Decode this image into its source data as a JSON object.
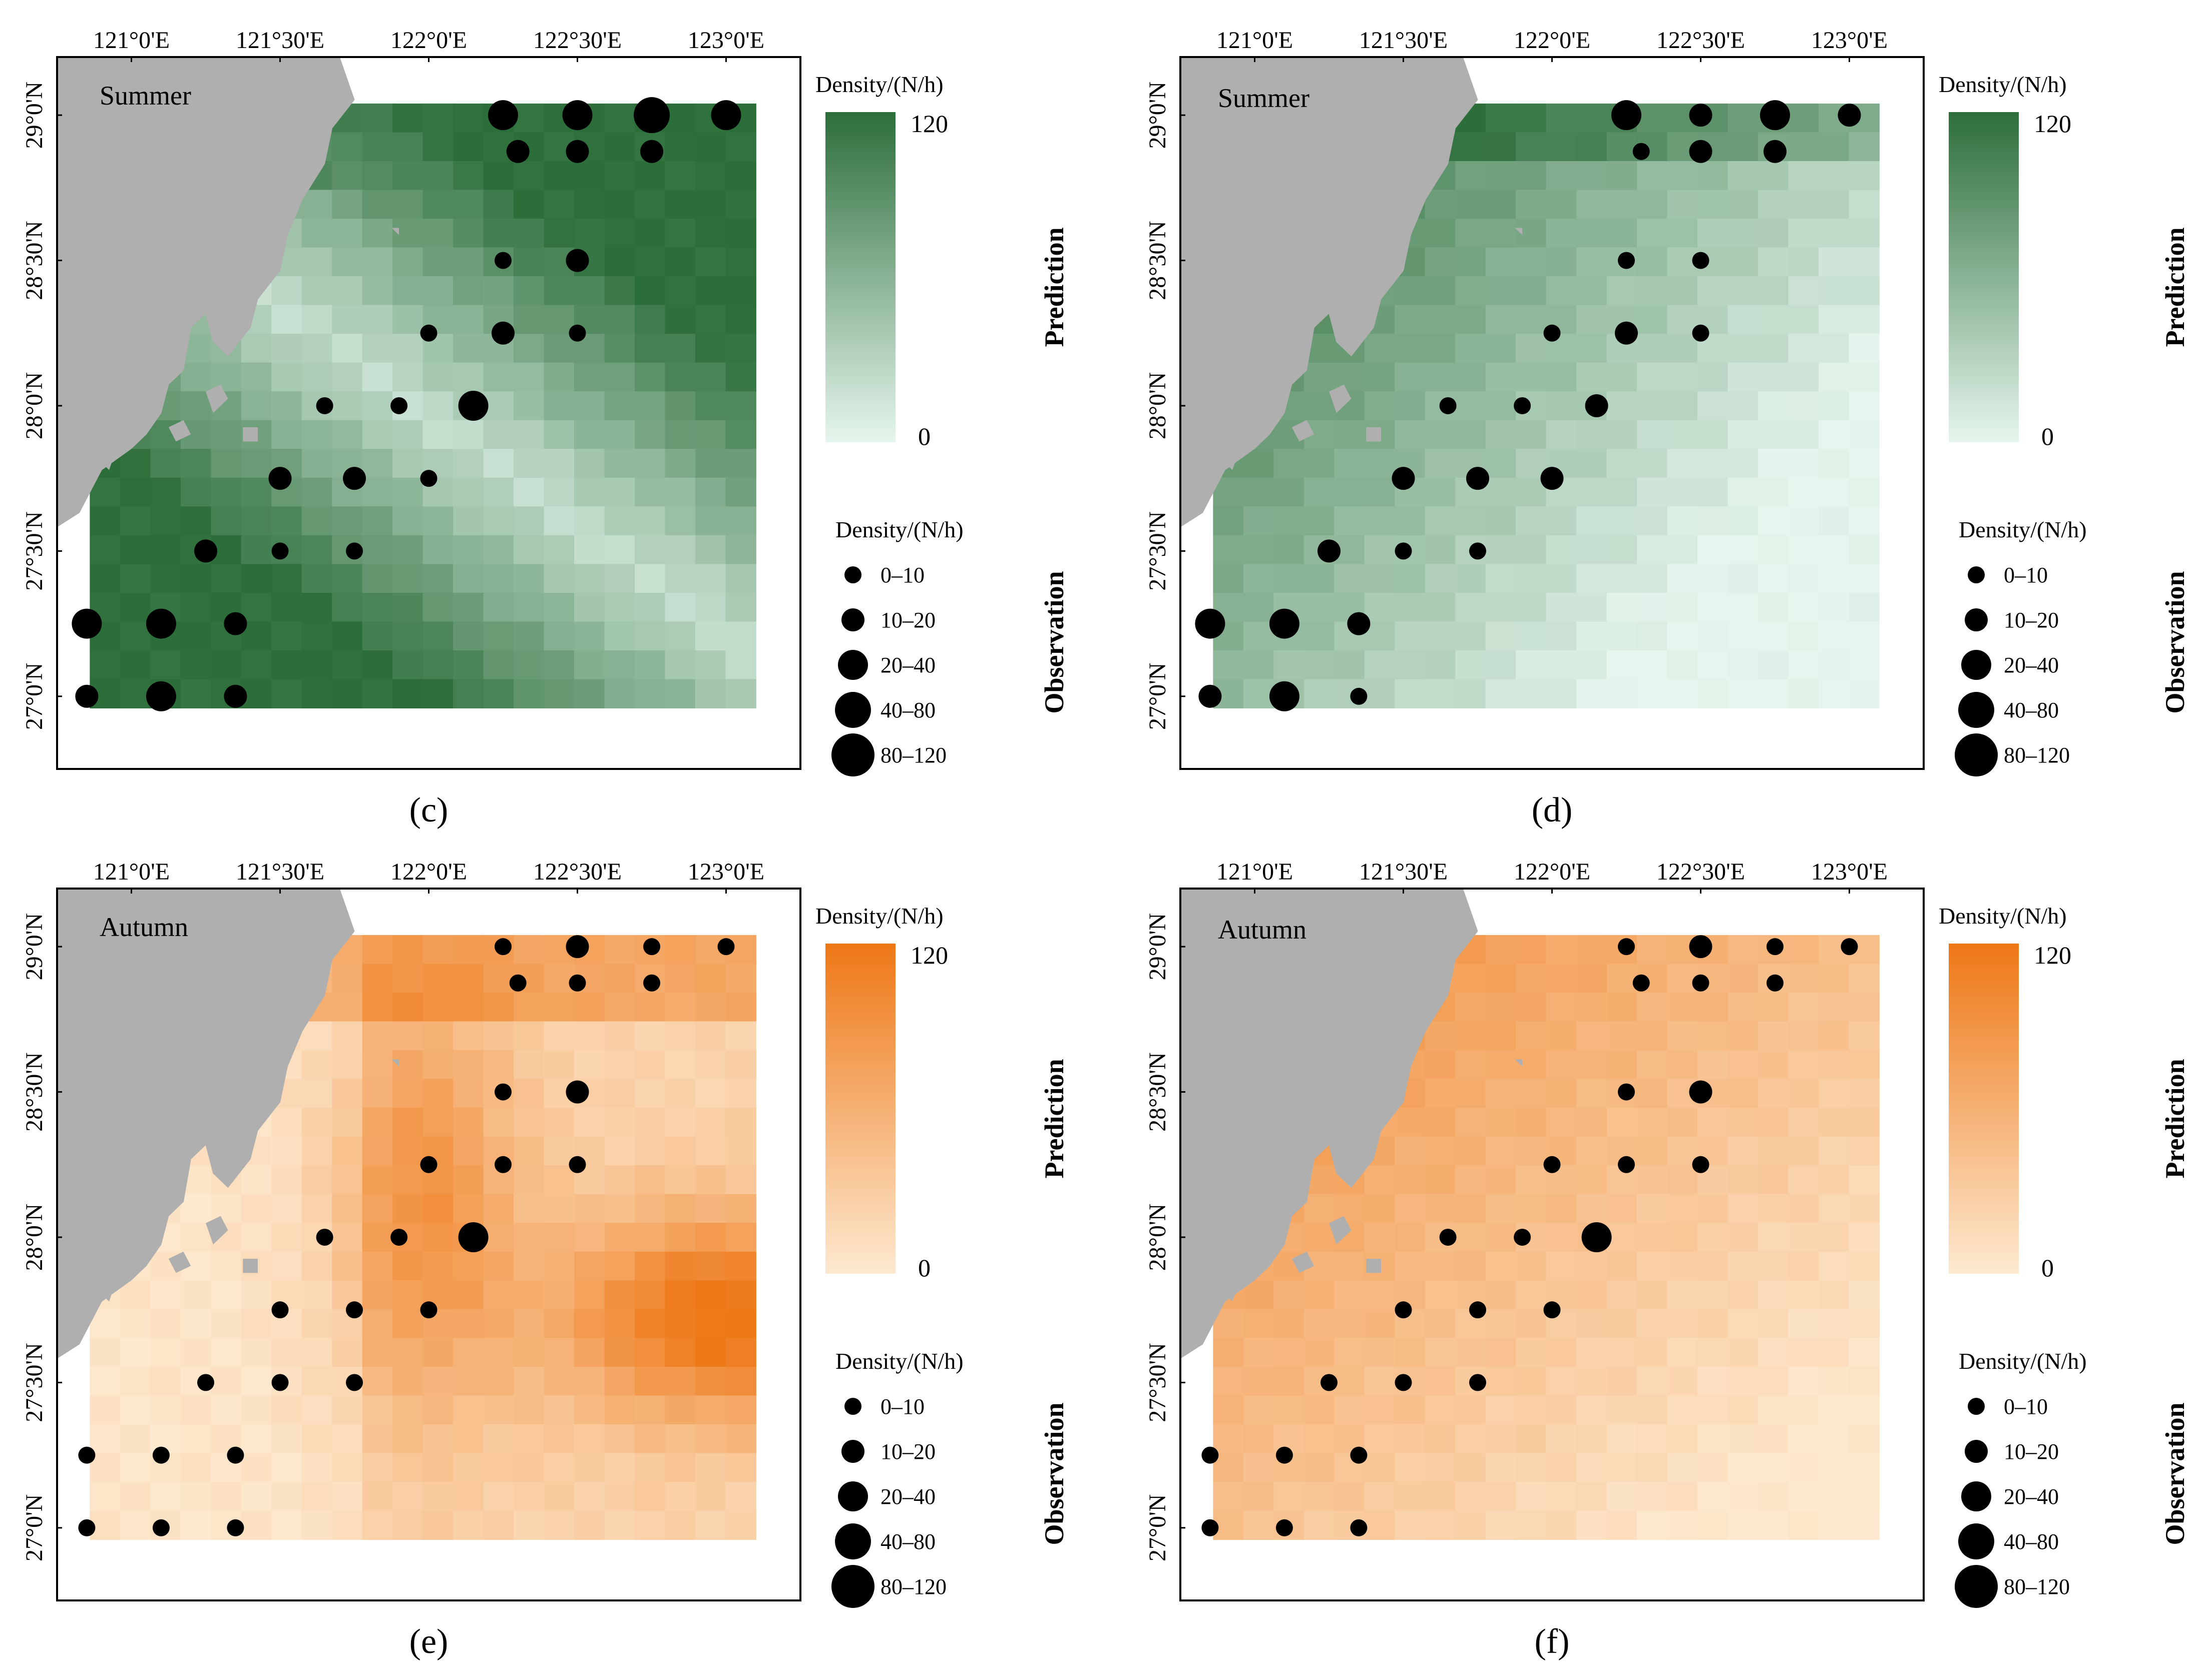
{
  "grid_axes": {
    "lon_labels": [
      "121°0'E",
      "121°30'E",
      "122°0'E",
      "122°30'E",
      "123°0'E"
    ],
    "lat_labels": [
      "29°0'N",
      "28°30'N",
      "28°0'N",
      "27°30'N",
      "27°0'N"
    ]
  },
  "legend_shared": {
    "density_title": "Density/(N/h)",
    "max_label": "120",
    "min_label": "0",
    "observation_classes": [
      "0–10",
      "10–20",
      "20–40",
      "40–80",
      "80–120"
    ],
    "prediction_label": "Prediction",
    "observation_label": "Observation"
  },
  "panels": [
    {
      "id": "c",
      "caption": "(c)",
      "season": "Summer",
      "ramp": [
        "#e6f6ee",
        "#2c6e3a"
      ],
      "pattern": "summer_c",
      "stations": [
        [
          29,
          123,
          3
        ],
        [
          29,
          122.75,
          4
        ],
        [
          29,
          122.5,
          3
        ],
        [
          29,
          122.25,
          3
        ],
        [
          28.875,
          122.75,
          2
        ],
        [
          28.875,
          122.5,
          2
        ],
        [
          28.875,
          122.3,
          2
        ],
        [
          28.5,
          122.5,
          2
        ],
        [
          28.5,
          122.25,
          1
        ],
        [
          28.25,
          122.5,
          1
        ],
        [
          28.25,
          122.25,
          2
        ],
        [
          28.25,
          122,
          1
        ],
        [
          28,
          122.15,
          3
        ],
        [
          28,
          121.9,
          1
        ],
        [
          28,
          121.65,
          1
        ],
        [
          27.75,
          122,
          1
        ],
        [
          27.75,
          121.75,
          2
        ],
        [
          27.75,
          121.5,
          2
        ],
        [
          27.5,
          121.75,
          1
        ],
        [
          27.5,
          121.5,
          1
        ],
        [
          27.5,
          121.25,
          2
        ],
        [
          27.25,
          121.35,
          2
        ],
        [
          27.25,
          121.1,
          3
        ],
        [
          27.25,
          120.85,
          3
        ],
        [
          27,
          121.35,
          2
        ],
        [
          27,
          121.1,
          3
        ],
        [
          27,
          120.85,
          2
        ]
      ]
    },
    {
      "id": "d",
      "caption": "(d)",
      "season": "Summer",
      "ramp": [
        "#e6f6ee",
        "#2c6e3a"
      ],
      "pattern": "summer_d",
      "stations": [
        [
          29,
          123,
          2
        ],
        [
          29,
          122.75,
          3
        ],
        [
          29,
          122.5,
          2
        ],
        [
          29,
          122.25,
          3
        ],
        [
          28.875,
          122.75,
          2
        ],
        [
          28.875,
          122.5,
          2
        ],
        [
          28.875,
          122.3,
          1
        ],
        [
          28.5,
          122.5,
          1
        ],
        [
          28.5,
          122.25,
          1
        ],
        [
          28.25,
          122.5,
          1
        ],
        [
          28.25,
          122.25,
          2
        ],
        [
          28.25,
          122,
          1
        ],
        [
          28,
          122.15,
          2
        ],
        [
          28,
          121.9,
          1
        ],
        [
          28,
          121.65,
          1
        ],
        [
          27.75,
          122,
          2
        ],
        [
          27.75,
          121.75,
          2
        ],
        [
          27.75,
          121.5,
          2
        ],
        [
          27.5,
          121.75,
          1
        ],
        [
          27.5,
          121.5,
          1
        ],
        [
          27.5,
          121.25,
          2
        ],
        [
          27.25,
          121.35,
          2
        ],
        [
          27.25,
          121.1,
          3
        ],
        [
          27.25,
          120.85,
          3
        ],
        [
          27,
          121.35,
          1
        ],
        [
          27,
          121.1,
          3
        ],
        [
          27,
          120.85,
          2
        ]
      ]
    },
    {
      "id": "e",
      "caption": "(e)",
      "season": "Autumn",
      "ramp": [
        "#fde9d0",
        "#ee7716"
      ],
      "pattern": "autumn_e",
      "stations": [
        [
          29,
          123,
          1
        ],
        [
          29,
          122.75,
          1
        ],
        [
          29,
          122.5,
          2
        ],
        [
          29,
          122.25,
          1
        ],
        [
          28.875,
          122.75,
          1
        ],
        [
          28.875,
          122.5,
          1
        ],
        [
          28.875,
          122.3,
          1
        ],
        [
          28.5,
          122.5,
          2
        ],
        [
          28.5,
          122.25,
          1
        ],
        [
          28.25,
          122.5,
          1
        ],
        [
          28.25,
          122.25,
          1
        ],
        [
          28.25,
          122,
          1
        ],
        [
          28,
          122.15,
          3
        ],
        [
          28,
          121.9,
          1
        ],
        [
          28,
          121.65,
          1
        ],
        [
          27.75,
          122,
          1
        ],
        [
          27.75,
          121.75,
          1
        ],
        [
          27.75,
          121.5,
          1
        ],
        [
          27.5,
          121.75,
          1
        ],
        [
          27.5,
          121.5,
          1
        ],
        [
          27.5,
          121.25,
          1
        ],
        [
          27.25,
          121.35,
          1
        ],
        [
          27.25,
          121.1,
          1
        ],
        [
          27.25,
          120.85,
          1
        ],
        [
          27,
          121.35,
          1
        ],
        [
          27,
          121.1,
          1
        ],
        [
          27,
          120.85,
          1
        ]
      ]
    },
    {
      "id": "f",
      "caption": "(f)",
      "season": "Autumn",
      "ramp": [
        "#fde9d0",
        "#ee7716"
      ],
      "pattern": "autumn_f",
      "stations": [
        [
          29,
          123,
          1
        ],
        [
          29,
          122.75,
          1
        ],
        [
          29,
          122.5,
          2
        ],
        [
          29,
          122.25,
          1
        ],
        [
          28.875,
          122.75,
          1
        ],
        [
          28.875,
          122.5,
          1
        ],
        [
          28.875,
          122.3,
          1
        ],
        [
          28.5,
          122.5,
          2
        ],
        [
          28.5,
          122.25,
          1
        ],
        [
          28.25,
          122.5,
          1
        ],
        [
          28.25,
          122.25,
          1
        ],
        [
          28.25,
          122,
          1
        ],
        [
          28,
          122.15,
          3
        ],
        [
          28,
          121.9,
          1
        ],
        [
          28,
          121.65,
          1
        ],
        [
          27.75,
          122,
          1
        ],
        [
          27.75,
          121.75,
          1
        ],
        [
          27.75,
          121.5,
          1
        ],
        [
          27.5,
          121.75,
          1
        ],
        [
          27.5,
          121.5,
          1
        ],
        [
          27.5,
          121.25,
          1
        ],
        [
          27.25,
          121.35,
          1
        ],
        [
          27.25,
          121.1,
          1
        ],
        [
          27.25,
          120.85,
          1
        ],
        [
          27,
          121.35,
          1
        ],
        [
          27,
          121.1,
          1
        ],
        [
          27,
          120.85,
          1
        ]
      ]
    }
  ]
}
